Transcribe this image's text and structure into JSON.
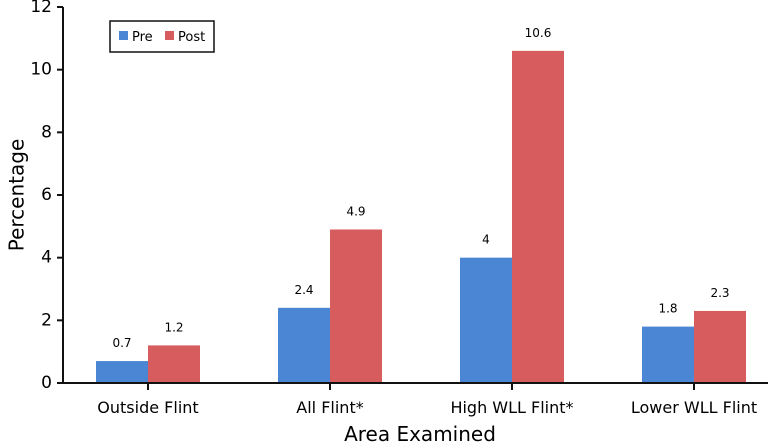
{
  "chart_data": {
    "type": "bar",
    "title": "",
    "xlabel": "Area Examined",
    "ylabel": "Percentage",
    "ylim": [
      0,
      12
    ],
    "yticks": [
      0,
      2,
      4,
      6,
      8,
      10,
      12
    ],
    "grid": false,
    "legend_position": "top-left",
    "categories": [
      "Outside Flint",
      "All Flint*",
      "High WLL Flint*",
      "Lower WLL Flint"
    ],
    "series": [
      {
        "name": "Pre",
        "color": "#4a86d4",
        "values": [
          0.7,
          2.4,
          4,
          1.8
        ],
        "labels": [
          "0.7",
          "2.4",
          "4",
          "1.8"
        ]
      },
      {
        "name": "Post",
        "color": "#d65c5e",
        "values": [
          1.2,
          4.9,
          10.6,
          2.3
        ],
        "labels": [
          "1.2",
          "4.9",
          "10.6",
          "2.3"
        ]
      }
    ]
  }
}
